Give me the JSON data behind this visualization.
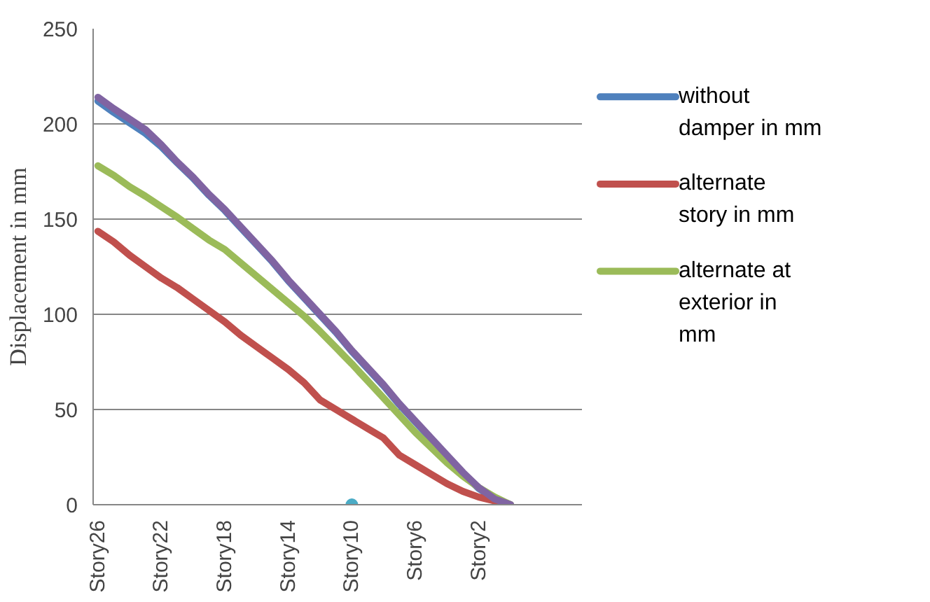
{
  "chart_data": {
    "type": "line",
    "ylabel": "Displacement in mm",
    "categories": [
      "Story26",
      null,
      null,
      null,
      "Story22",
      null,
      null,
      null,
      "Story18",
      null,
      null,
      null,
      "Story14",
      null,
      null,
      null,
      "Story10",
      null,
      null,
      null,
      "Story6",
      null,
      null,
      null,
      "Story2",
      null,
      null
    ],
    "ylim": [
      0,
      250
    ],
    "yticks": [
      0,
      50,
      100,
      150,
      200,
      250
    ],
    "grid": "y",
    "legend": "right",
    "line_style": "solid",
    "series": [
      {
        "name": "without damper in mm",
        "color": "#4f81bd",
        "values": [
          212,
          206,
          200.5,
          195,
          188,
          179.5,
          171.5,
          162.5,
          154.5,
          145.5,
          136.5,
          127.5,
          117.5,
          108.5,
          99.5,
          90.5,
          80.5,
          71.5,
          62.5,
          52.5,
          43.5,
          34.5,
          25.5,
          16.5,
          8.5,
          3,
          0
        ]
      },
      {
        "name": "alternate story in mm",
        "color": "#c0504d",
        "values": [
          143.6,
          138,
          131,
          125,
          119,
          114,
          108,
          102,
          96,
          89,
          83,
          77,
          71,
          64,
          55,
          50,
          45,
          40,
          35,
          26,
          21,
          16,
          11,
          7,
          4,
          2,
          0
        ]
      },
      {
        "name": "alternate at exterior in mm",
        "color": "#9bbb59",
        "values": [
          178,
          173,
          167,
          162,
          156.5,
          151,
          145,
          139,
          134,
          127,
          120,
          113,
          106,
          99,
          91,
          82.5,
          74,
          65,
          56,
          47,
          38,
          30,
          22,
          15,
          9,
          4,
          0
        ]
      },
      {
        "color": "#8064a2",
        "values": [
          214,
          208,
          202.5,
          197,
          189,
          180,
          172,
          163,
          155,
          146,
          137,
          128,
          118,
          109,
          100,
          91,
          81,
          72,
          63,
          53,
          44,
          35,
          26,
          17,
          9,
          3,
          0
        ]
      },
      {
        "type": "scatter",
        "marker": "circle",
        "color": "#4bacc6",
        "values": [
          null,
          null,
          null,
          null,
          null,
          null,
          null,
          null,
          null,
          null,
          null,
          null,
          null,
          null,
          null,
          null,
          0,
          null,
          null,
          null,
          null,
          null,
          null,
          null,
          null,
          null,
          null
        ]
      }
    ]
  }
}
